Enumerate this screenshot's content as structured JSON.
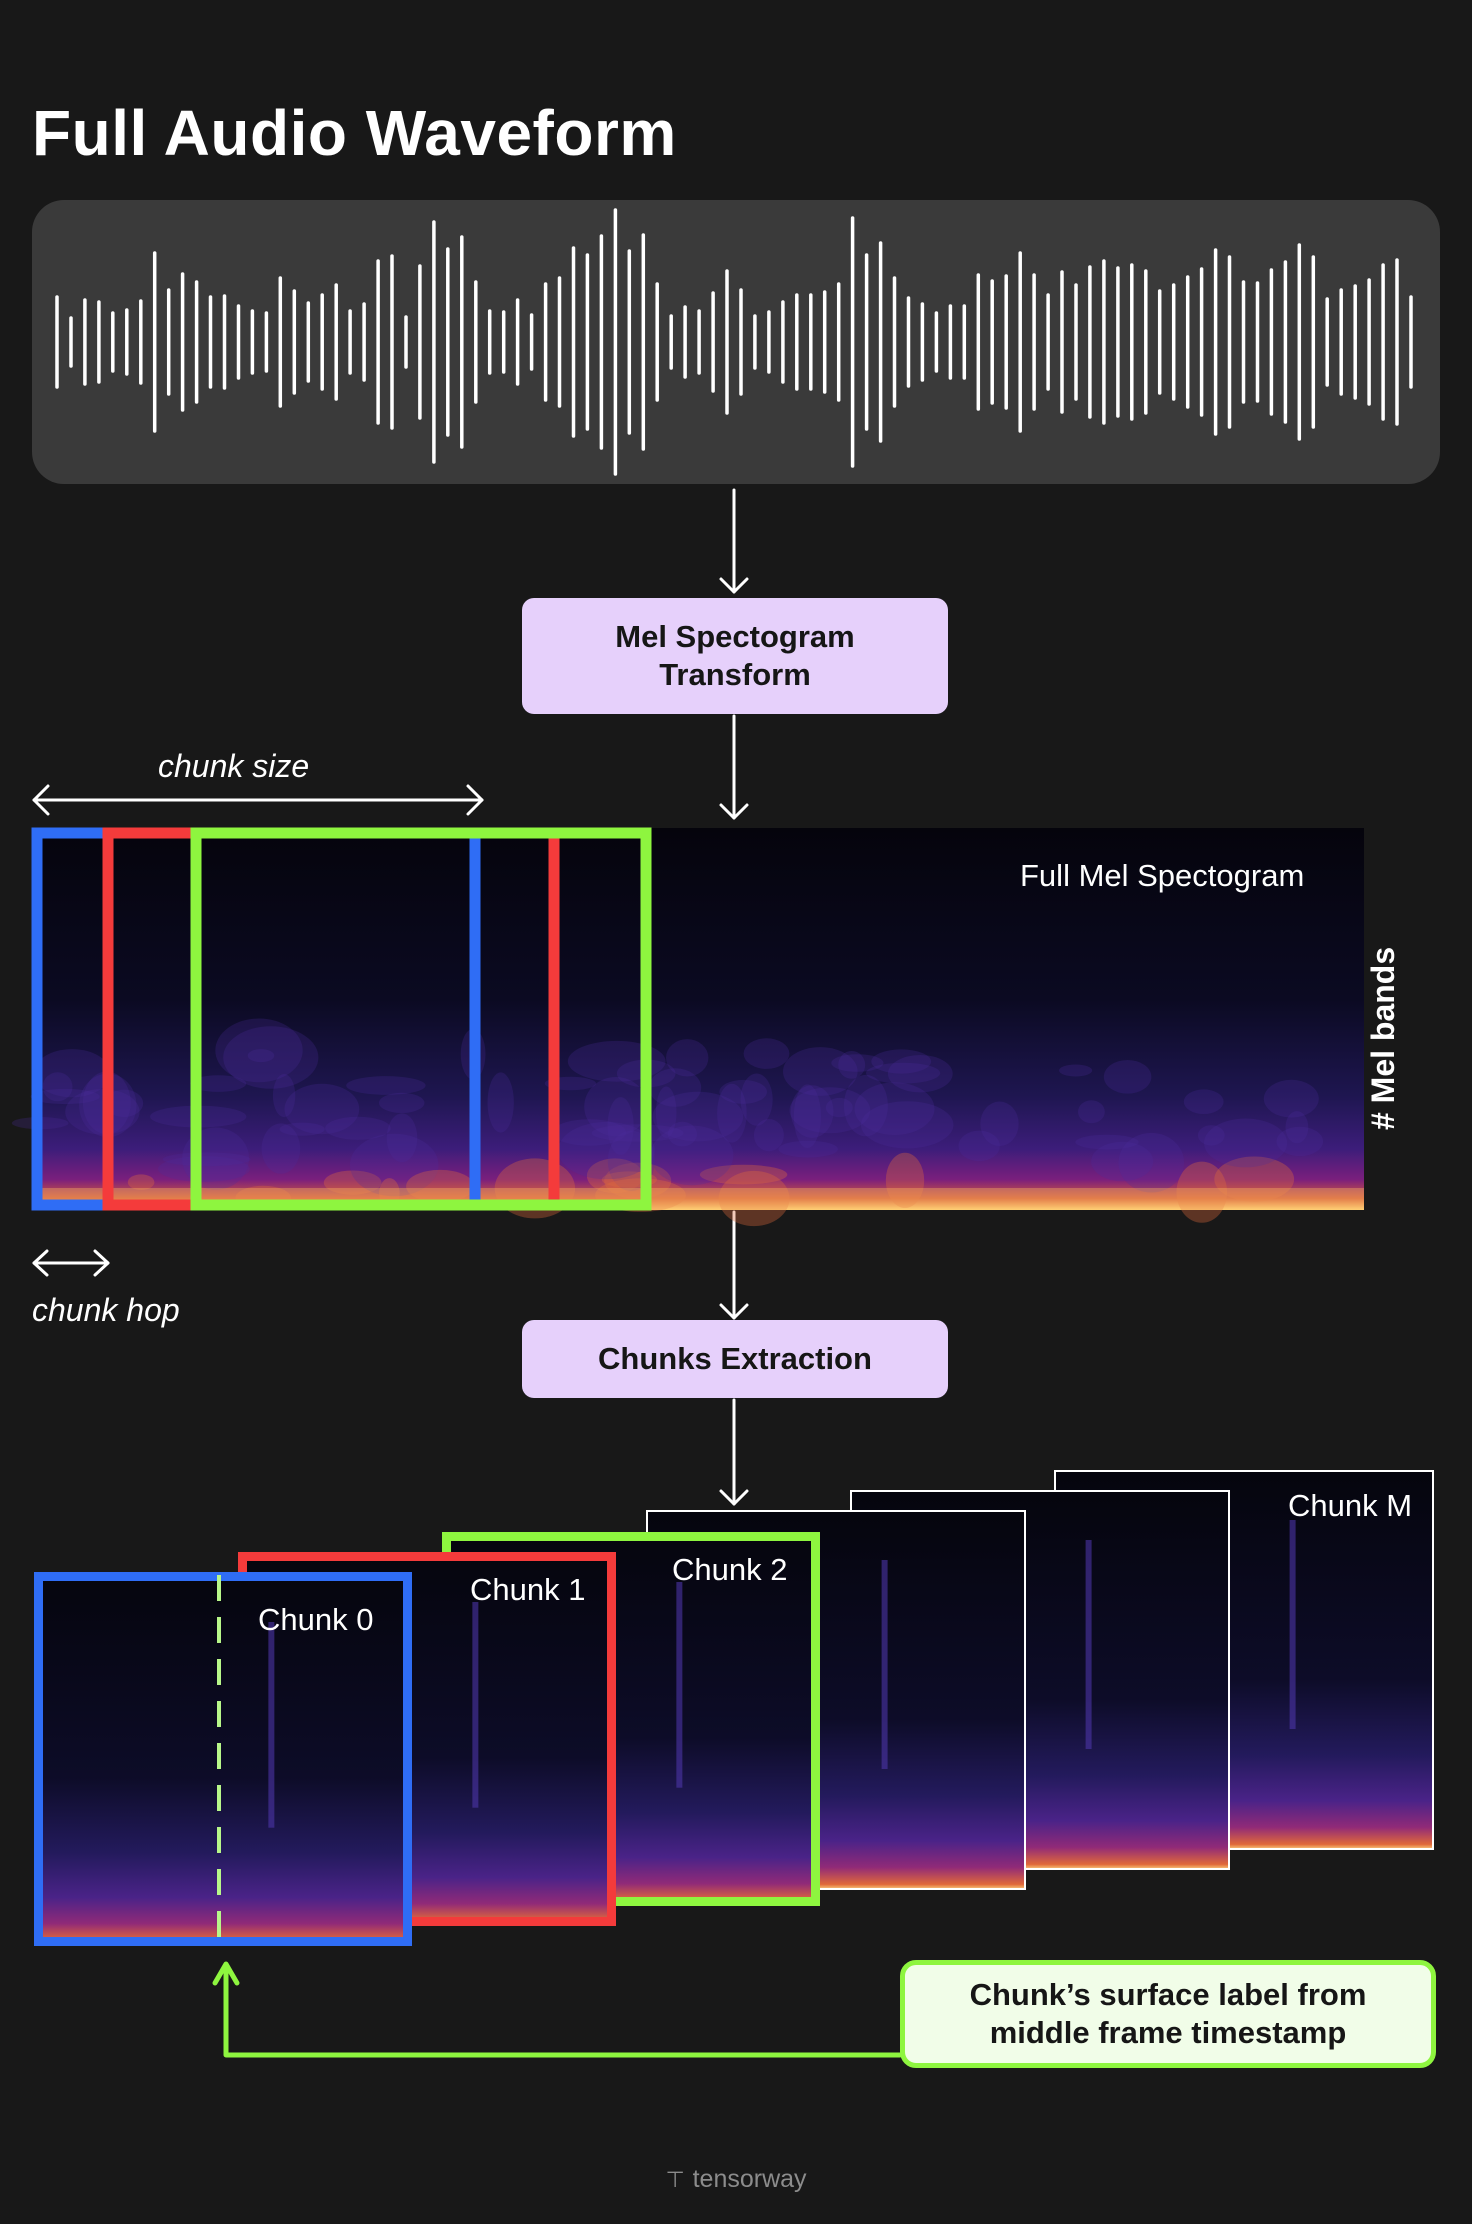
{
  "title": "Full Audio Waveform",
  "process_steps": {
    "mel_transform": [
      "Mel Spectogram",
      "Transform"
    ],
    "chunks_extraction": "Chunks Extraction"
  },
  "annotations": {
    "chunk_size": "chunk size",
    "chunk_hop": "chunk hop",
    "full_spectrogram": "Full Mel Spectogram",
    "mel_bands": "# Mel bands"
  },
  "chunks": [
    {
      "label": "Chunk 0",
      "color": "#2f6df5"
    },
    {
      "label": "Chunk 1",
      "color": "#f43b3b"
    },
    {
      "label": "Chunk 2",
      "color": "#8ef53f"
    },
    {
      "label": "",
      "color": "#ffffff"
    },
    {
      "label": "",
      "color": "#ffffff"
    },
    {
      "label": "Chunk M",
      "color": "#ffffff"
    }
  ],
  "note": [
    "Chunk’s surface label from",
    "middle frame timestamp"
  ],
  "brand": "tensorway",
  "colors": {
    "background": "#181818",
    "waveform_panel": "#3a3a3a",
    "process_box": "#e6d0fb",
    "note_box": "#f1fde8",
    "blue": "#2f6df5",
    "red": "#f43b3b",
    "green": "#8ef53f"
  },
  "icons": {
    "down_arrow": "arrow-down-icon",
    "double_arrow": "double-arrow-icon",
    "brand_logo": "tensorway-logo-icon"
  }
}
